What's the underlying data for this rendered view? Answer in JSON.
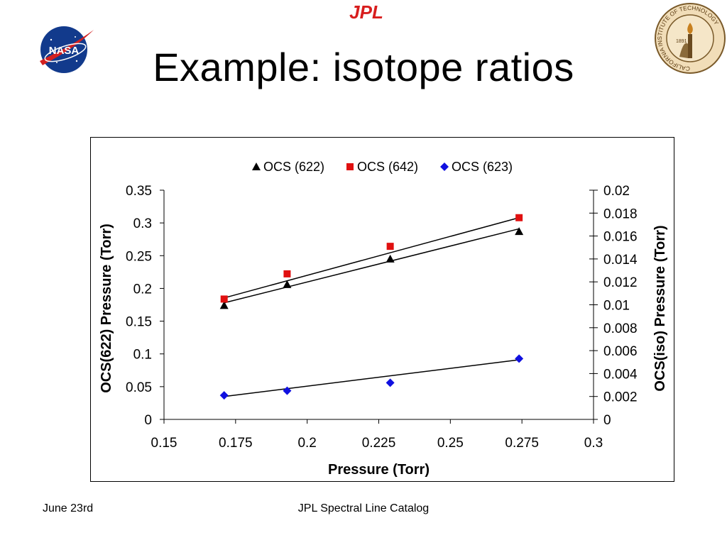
{
  "slide": {
    "title": "Example: isotope ratios",
    "footer_left": "June 23rd",
    "footer_center": "JPL Spectral Line Catalog",
    "logos": {
      "jpl": "JPL",
      "nasa": "NASA",
      "caltech_ring": "CALIFORNIA INSTITUTE OF TECHNOLOGY",
      "caltech_year": "1891"
    }
  },
  "chart_data": {
    "type": "scatter",
    "title": "",
    "xlabel": "Pressure (Torr)",
    "ylabel_left": "OCS(622) Pressure (Torr)",
    "ylabel_right": "OCS(iso) Pressure (Torr)",
    "xlim": [
      0.15,
      0.3
    ],
    "ylim_left": [
      0,
      0.35
    ],
    "ylim_right": [
      0,
      0.02
    ],
    "xticks": [
      "0.15",
      "0.175",
      "0.2",
      "0.225",
      "0.25",
      "0.275",
      "0.3"
    ],
    "yticks_left": [
      "0",
      "0.05",
      "0.1",
      "0.15",
      "0.2",
      "0.25",
      "0.3",
      "0.35"
    ],
    "yticks_right": [
      "0",
      "0.002",
      "0.004",
      "0.006",
      "0.008",
      "0.01",
      "0.012",
      "0.014",
      "0.016",
      "0.018",
      "0.02"
    ],
    "legend_position": "top-center",
    "grid": false,
    "trendlines": true,
    "series": [
      {
        "name": "OCS (622)",
        "marker": "triangle",
        "color": "#000000",
        "axis": "left",
        "x": [
          0.171,
          0.193,
          0.229,
          0.274
        ],
        "y": [
          0.174,
          0.206,
          0.245,
          0.287
        ],
        "fit": {
          "x": [
            0.171,
            0.274
          ],
          "y": [
            0.178,
            0.291
          ]
        }
      },
      {
        "name": "OCS (642)",
        "marker": "square",
        "color": "#e01010",
        "axis": "right",
        "x": [
          0.171,
          0.193,
          0.229,
          0.274
        ],
        "y": [
          0.0105,
          0.0127,
          0.0151,
          0.0176
        ],
        "fit": {
          "x": [
            0.171,
            0.274
          ],
          "y": [
            0.0106,
            0.0176
          ]
        }
      },
      {
        "name": "OCS (623)",
        "marker": "diamond",
        "color": "#1010e0",
        "axis": "right",
        "x": [
          0.171,
          0.193,
          0.229,
          0.274
        ],
        "y": [
          0.0021,
          0.0025,
          0.0032,
          0.0053
        ],
        "fit": {
          "x": [
            0.171,
            0.274
          ],
          "y": [
            0.002,
            0.0052
          ]
        }
      }
    ]
  }
}
